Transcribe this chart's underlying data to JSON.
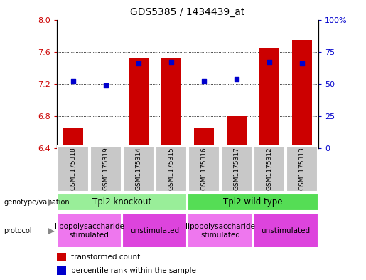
{
  "title": "GDS5385 / 1434439_at",
  "samples": [
    "GSM1175318",
    "GSM1175319",
    "GSM1175314",
    "GSM1175315",
    "GSM1175316",
    "GSM1175317",
    "GSM1175312",
    "GSM1175313"
  ],
  "transformed_count": [
    6.65,
    6.45,
    7.52,
    7.52,
    6.65,
    6.8,
    7.65,
    7.75
  ],
  "percentile_rank": [
    52,
    49,
    66,
    67,
    52,
    54,
    67,
    66
  ],
  "ylim_left": [
    6.4,
    8.0
  ],
  "ylim_right": [
    0,
    100
  ],
  "yticks_left": [
    6.4,
    6.8,
    7.2,
    7.6,
    8.0
  ],
  "yticks_right": [
    0,
    25,
    50,
    75,
    100
  ],
  "bar_color": "#cc0000",
  "dot_color": "#0000cc",
  "bar_bottom": 6.4,
  "genotype_groups": [
    {
      "label": "Tpl2 knockout",
      "start": 0,
      "end": 3,
      "color": "#99ee99"
    },
    {
      "label": "Tpl2 wild type",
      "start": 4,
      "end": 7,
      "color": "#55dd55"
    }
  ],
  "protocol_groups": [
    {
      "label": "lipopolysaccharide\nstimulated",
      "start": 0,
      "end": 1,
      "color": "#ee77ee"
    },
    {
      "label": "unstimulated",
      "start": 2,
      "end": 3,
      "color": "#dd44dd"
    },
    {
      "label": "lipopolysaccharide\nstimulated",
      "start": 4,
      "end": 5,
      "color": "#ee77ee"
    },
    {
      "label": "unstimulated",
      "start": 6,
      "end": 7,
      "color": "#dd44dd"
    }
  ],
  "plot_bg": "#ffffff",
  "left_label_color": "#cc0000",
  "right_label_color": "#0000cc",
  "gsm_bg": "#c8c8c8"
}
